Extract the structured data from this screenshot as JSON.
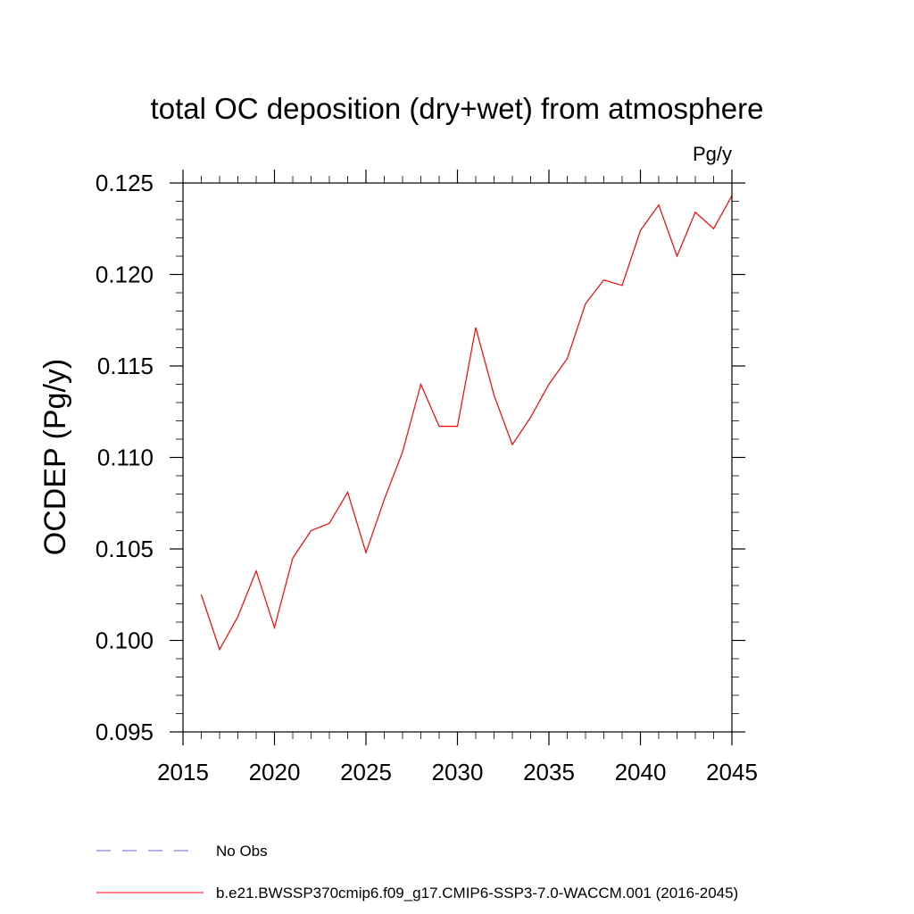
{
  "chart_data": {
    "type": "line",
    "title": "total OC deposition (dry+wet) from atmosphere",
    "units": "Pg/y",
    "xlabel": "",
    "ylabel": "OCDEP  (Pg/y)",
    "xlim": [
      2015,
      2045
    ],
    "ylim": [
      0.095,
      0.125
    ],
    "xticks": [
      2015,
      2020,
      2025,
      2030,
      2035,
      2040,
      2045
    ],
    "xtick_labels": [
      "2015",
      "2020",
      "2025",
      "2030",
      "2035",
      "2040",
      "2045"
    ],
    "yticks": [
      0.095,
      0.1,
      0.105,
      0.11,
      0.115,
      0.12,
      0.125
    ],
    "ytick_labels": [
      "0.095",
      "0.100",
      "0.105",
      "0.110",
      "0.115",
      "0.120",
      "0.125"
    ],
    "grid": false,
    "series": [
      {
        "name": "b.e21.BWSSP370cmip6.f09_g17.CMIP6-SSP3-7.0-WACCM.001 (2016-2045)",
        "color": "#ff0000",
        "style": "solid",
        "x": [
          2016,
          2017,
          2018,
          2019,
          2020,
          2021,
          2022,
          2023,
          2024,
          2025,
          2026,
          2027,
          2028,
          2029,
          2030,
          2031,
          2032,
          2033,
          2034,
          2035,
          2036,
          2037,
          2038,
          2039,
          2040,
          2041,
          2042,
          2043,
          2044,
          2045
        ],
        "values": [
          0.1025,
          0.0995,
          0.1013,
          0.1038,
          0.1007,
          0.1045,
          0.106,
          0.1064,
          0.1081,
          0.1048,
          0.1077,
          0.1103,
          0.114,
          0.1117,
          0.1117,
          0.1171,
          0.1134,
          0.1107,
          0.1122,
          0.114,
          0.1154,
          0.1184,
          0.1197,
          0.1194,
          0.1224,
          0.1238,
          0.121,
          0.1234,
          0.1225,
          0.1243
        ]
      }
    ],
    "legend": [
      {
        "label": "No Obs",
        "color": "#6b5fc4",
        "style": "dashed"
      },
      {
        "label": "b.e21.BWSSP370cmip6.f09_g17.CMIP6-SSP3-7.0-WACCM.001 (2016-2045)",
        "color": "#ff0000",
        "style": "solid"
      }
    ]
  }
}
